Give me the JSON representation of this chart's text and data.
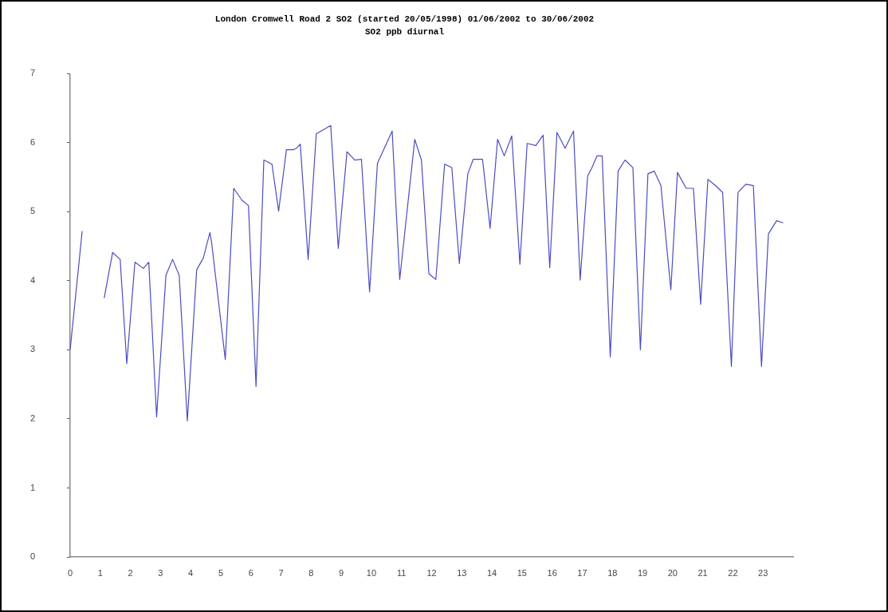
{
  "chart_data": {
    "type": "line",
    "title": "London Cromwell Road 2 SO2 (started 20/05/1998) 01/06/2002 to 30/06/2002",
    "subtitle": "SO2 ppb diurnal",
    "x": [
      0,
      0.4,
      0.75,
      1.13,
      1.41,
      1.66,
      1.88,
      2.15,
      2.43,
      2.61,
      2.87,
      3.18,
      3.4,
      3.62,
      3.89,
      4.2,
      4.42,
      4.64,
      4.7,
      5.15,
      5.43,
      5.7,
      5.92,
      6.17,
      6.43,
      6.7,
      6.92,
      7.18,
      7.42,
      7.51,
      7.64,
      7.9,
      8.17,
      8.65,
      8.9,
      9.19,
      9.45,
      9.67,
      9.94,
      10.2,
      10.69,
      10.94,
      11.44,
      11.66,
      11.91,
      12.14,
      12.43,
      12.67,
      12.92,
      13.2,
      13.38,
      13.69,
      13.94,
      14.19,
      14.41,
      14.66,
      14.93,
      15.17,
      15.46,
      15.7,
      15.92,
      16.16,
      16.43,
      16.71,
      16.93,
      17.18,
      17.31,
      17.49,
      17.66,
      17.93,
      18.19,
      18.42,
      18.68,
      18.93,
      19.18,
      19.39,
      19.61,
      19.94,
      20.16,
      20.45,
      20.69,
      20.93,
      21.17,
      21.42,
      21.66,
      21.95,
      22.17,
      22.43,
      22.68,
      22.95,
      23.18,
      23.45,
      23.67
    ],
    "values": [
      3.0,
      4.72,
      null,
      3.75,
      4.41,
      4.31,
      2.8,
      4.27,
      4.18,
      4.27,
      2.03,
      4.08,
      4.31,
      4.08,
      1.97,
      4.16,
      4.33,
      4.7,
      4.54,
      2.86,
      5.34,
      5.17,
      5.09,
      2.47,
      5.75,
      5.69,
      5.01,
      5.9,
      5.9,
      5.92,
      5.98,
      4.31,
      6.13,
      6.25,
      4.47,
      5.87,
      5.75,
      5.76,
      3.84,
      5.7,
      6.17,
      4.02,
      6.05,
      5.75,
      4.1,
      4.02,
      5.69,
      5.64,
      4.25,
      5.55,
      5.76,
      5.76,
      4.76,
      6.05,
      5.81,
      6.1,
      4.24,
      5.99,
      5.96,
      6.11,
      4.19,
      6.15,
      5.92,
      6.17,
      4.01,
      5.52,
      5.63,
      5.81,
      5.81,
      2.9,
      5.59,
      5.75,
      5.64,
      3.0,
      5.55,
      5.59,
      5.38,
      3.87,
      5.57,
      5.34,
      5.34,
      3.66,
      5.47,
      5.38,
      5.28,
      2.76,
      5.28,
      5.4,
      5.38,
      2.76,
      4.68,
      4.87,
      4.84
    ],
    "color": "#4c4cc0",
    "xlim": [
      0,
      24
    ],
    "xticks": [
      0,
      1,
      2,
      3,
      4,
      5,
      6,
      7,
      8,
      9,
      10,
      11,
      12,
      13,
      14,
      15,
      16,
      17,
      18,
      19,
      20,
      21,
      22,
      23
    ],
    "ylim": [
      0,
      7
    ],
    "yticks": [
      0,
      1,
      2,
      3,
      4,
      5,
      6,
      7
    ],
    "grid": false,
    "legend": false,
    "marker": "none",
    "line_style": "solid"
  }
}
